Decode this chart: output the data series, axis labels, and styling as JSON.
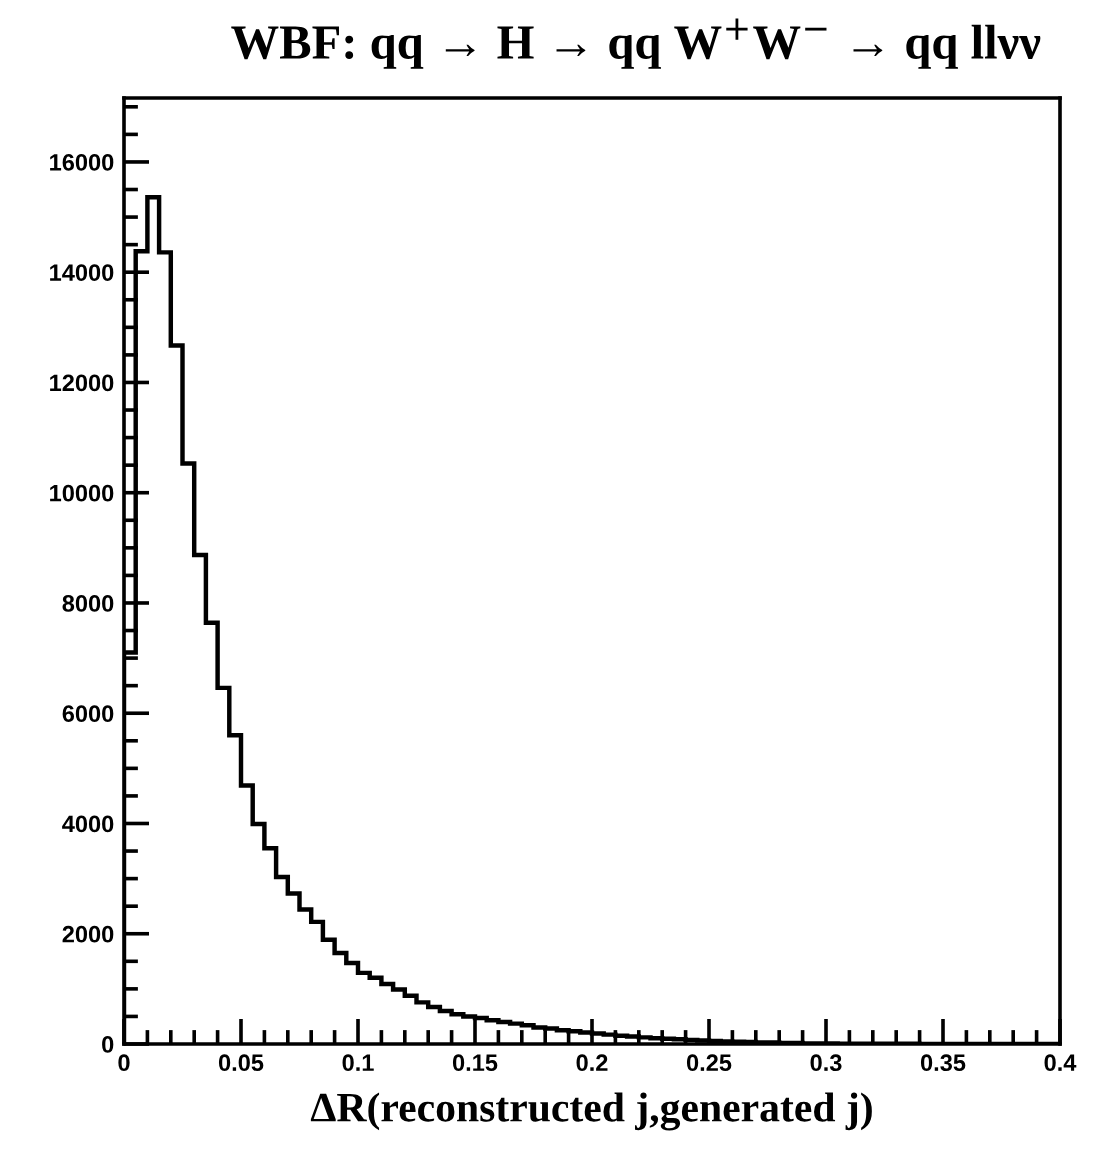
{
  "chart_data": {
    "type": "histogram",
    "title": "WBF: qq → H → qq W$^{+}$W$^{−}$ → qq llνν",
    "xlabel": "ΔR(reconstructed j,generated j)",
    "bins": [
      0,
      0.005,
      0.01,
      0.015,
      0.02,
      0.025,
      0.03,
      0.035,
      0.04,
      0.045,
      0.05,
      0.055,
      0.06,
      0.065,
      0.07,
      0.075,
      0.08,
      0.085,
      0.09,
      0.095,
      0.1,
      0.105,
      0.11,
      0.115,
      0.12,
      0.125,
      0.13,
      0.135,
      0.14,
      0.145,
      0.15,
      0.155,
      0.16,
      0.165,
      0.17,
      0.175,
      0.18,
      0.185,
      0.19,
      0.195,
      0.2,
      0.205,
      0.21,
      0.215,
      0.22,
      0.225,
      0.23,
      0.235,
      0.24,
      0.245,
      0.25,
      0.255,
      0.26,
      0.265,
      0.27,
      0.275,
      0.28,
      0.285,
      0.29,
      0.295,
      0.3,
      0.305,
      0.31,
      0.315,
      0.32,
      0.325,
      0.33,
      0.335,
      0.34,
      0.345,
      0.35,
      0.355,
      0.36,
      0.365,
      0.37,
      0.375,
      0.38,
      0.385,
      0.39,
      0.395,
      0.4
    ],
    "values": [
      7100,
      14380,
      15360,
      14360,
      12670,
      10530,
      8870,
      7640,
      6460,
      5600,
      4690,
      3990,
      3550,
      3030,
      2730,
      2440,
      2215,
      1890,
      1650,
      1470,
      1290,
      1200,
      1090,
      990,
      875,
      755,
      670,
      600,
      540,
      500,
      470,
      430,
      400,
      370,
      340,
      300,
      280,
      250,
      230,
      210,
      190,
      170,
      150,
      135,
      120,
      105,
      95,
      85,
      75,
      65,
      55,
      48,
      42,
      36,
      30,
      26,
      22,
      19,
      16,
      14,
      12,
      10,
      9,
      8,
      7,
      6,
      5,
      5,
      4,
      4,
      3,
      3,
      3,
      2,
      2,
      2,
      2,
      1,
      1,
      1
    ],
    "color": "#000000",
    "xlim": [
      0,
      0.4
    ],
    "ylim": [
      0,
      17160
    ],
    "xticks": [
      0,
      0.05,
      0.1,
      0.15,
      0.2,
      0.25,
      0.3,
      0.35,
      0.4
    ],
    "yticks": [
      0,
      2000,
      4000,
      6000,
      8000,
      10000,
      12000,
      14000,
      16000
    ],
    "grid": false,
    "legend": false
  }
}
